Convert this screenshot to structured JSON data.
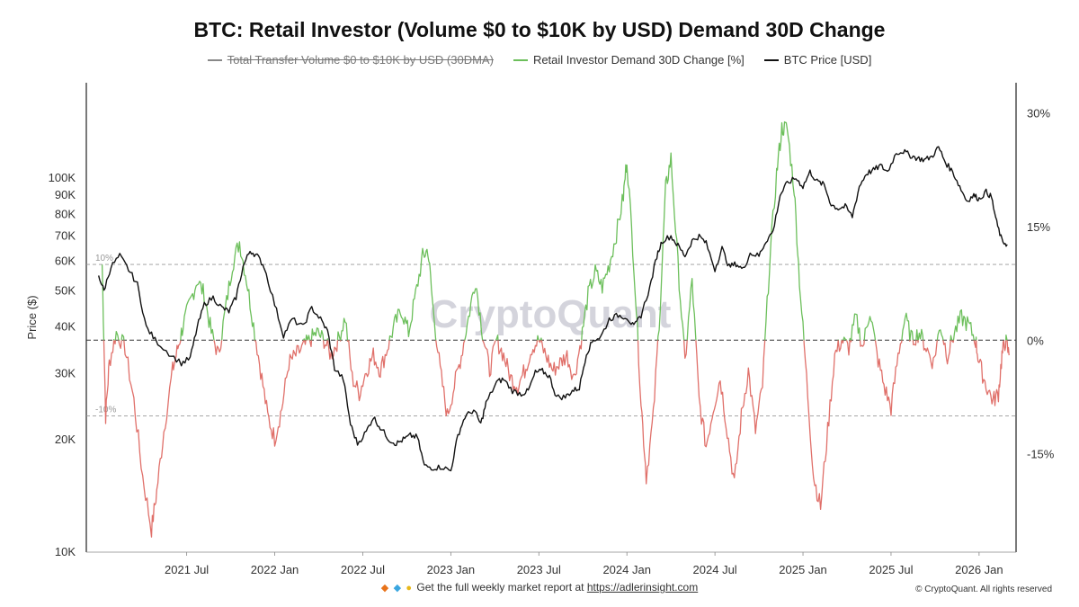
{
  "title": "BTC: Retail Investor (Volume $0 to $10K by USD) Demand 30D Change",
  "legend": [
    {
      "label": "Total Transfer Volume $0 to $10K by USD (30DMA)",
      "color": "#888888",
      "hidden": true
    },
    {
      "label": "Retail Investor Demand 30D Change [%]",
      "color": "#6cbf5b",
      "hidden": false
    },
    {
      "label": "BTC Price [USD]",
      "color": "#111111",
      "hidden": false
    }
  ],
  "footer": {
    "icons": [
      "diamond-icon",
      "gem-icon",
      "scream-icon"
    ],
    "text": "Get the full weekly market report at ",
    "link_text": "https://adlerinsight.com",
    "copyright": "© CryptoQuant. All rights reserved"
  },
  "watermark": "CryptoQuant",
  "colors": {
    "positive": "#6cbf5b",
    "negative": "#e0706a",
    "price": "#111111",
    "grid": "#888888"
  },
  "chart_data": {
    "type": "line",
    "title": "BTC: Retail Investor (Volume $0 to $10K by USD) Demand 30D Change",
    "x_ticks": [
      {
        "label": "2021 Jul",
        "t": 2021.5
      },
      {
        "label": "2022 Jan",
        "t": 2022.0
      },
      {
        "label": "2022 Jul",
        "t": 2022.5
      },
      {
        "label": "2023 Jan",
        "t": 2023.0
      },
      {
        "label": "2023 Jul",
        "t": 2023.5
      },
      {
        "label": "2024 Jan",
        "t": 2024.0
      },
      {
        "label": "2024 Jul",
        "t": 2024.5
      },
      {
        "label": "2025 Jan",
        "t": 2025.0
      },
      {
        "label": "2025 Jul",
        "t": 2025.5
      },
      {
        "label": "2026 Jan",
        "t": 2026.0
      }
    ],
    "x_range": [
      2020.93,
      2026.21
    ],
    "left_axis": {
      "label": "Price ($)",
      "scale": "log",
      "range": [
        10000,
        180000
      ],
      "ticks": [
        {
          "label": "10K",
          "v": 10000
        },
        {
          "label": "20K",
          "v": 20000
        },
        {
          "label": "30K",
          "v": 30000
        },
        {
          "label": "40K",
          "v": 40000
        },
        {
          "label": "50K",
          "v": 50000
        },
        {
          "label": "60K",
          "v": 60000
        },
        {
          "label": "70K",
          "v": 70000
        },
        {
          "label": "80K",
          "v": 80000
        },
        {
          "label": "90K",
          "v": 90000
        },
        {
          "label": "100K",
          "v": 100000
        }
      ]
    },
    "right_axis": {
      "range": [
        -28,
        34
      ],
      "ticks": [
        {
          "label": "30%",
          "v": 30
        },
        {
          "label": "15%",
          "v": 15
        },
        {
          "label": "0%",
          "v": 0
        },
        {
          "label": "-15%",
          "v": -15
        }
      ]
    },
    "ref_lines": [
      {
        "label": "10%",
        "v": 10,
        "dash": "4,3"
      },
      {
        "label": "-10%",
        "v": -10,
        "dash": "4,3"
      },
      {
        "label": "",
        "v": 0,
        "dash": "5,3"
      }
    ],
    "series": [
      {
        "name": "BTC Price [USD]",
        "axis": "left",
        "points": [
          [
            2021.0,
            55000
          ],
          [
            2021.03,
            50000
          ],
          [
            2021.07,
            58000
          ],
          [
            2021.12,
            62000
          ],
          [
            2021.17,
            57000
          ],
          [
            2021.22,
            52000
          ],
          [
            2021.27,
            40000
          ],
          [
            2021.32,
            37000
          ],
          [
            2021.4,
            34000
          ],
          [
            2021.47,
            32000
          ],
          [
            2021.52,
            33000
          ],
          [
            2021.56,
            40000
          ],
          [
            2021.6,
            46000
          ],
          [
            2021.65,
            48000
          ],
          [
            2021.7,
            45000
          ],
          [
            2021.74,
            44000
          ],
          [
            2021.78,
            48000
          ],
          [
            2021.82,
            58000
          ],
          [
            2021.86,
            64000
          ],
          [
            2021.9,
            62000
          ],
          [
            2021.94,
            58000
          ],
          [
            2022.0,
            46000
          ],
          [
            2022.05,
            38000
          ],
          [
            2022.1,
            42000
          ],
          [
            2022.16,
            40000
          ],
          [
            2022.21,
            45000
          ],
          [
            2022.26,
            42000
          ],
          [
            2022.3,
            39000
          ],
          [
            2022.34,
            31000
          ],
          [
            2022.39,
            29000
          ],
          [
            2022.43,
            22000
          ],
          [
            2022.47,
            19500
          ],
          [
            2022.52,
            21000
          ],
          [
            2022.56,
            23000
          ],
          [
            2022.6,
            21500
          ],
          [
            2022.65,
            20000
          ],
          [
            2022.69,
            19500
          ],
          [
            2022.73,
            20000
          ],
          [
            2022.77,
            20500
          ],
          [
            2022.81,
            20300
          ],
          [
            2022.85,
            17000
          ],
          [
            2022.9,
            16800
          ],
          [
            2022.95,
            16900
          ],
          [
            2023.0,
            16500
          ],
          [
            2023.04,
            20500
          ],
          [
            2023.08,
            23000
          ],
          [
            2023.13,
            24000
          ],
          [
            2023.17,
            22000
          ],
          [
            2023.2,
            25000
          ],
          [
            2023.26,
            28500
          ],
          [
            2023.3,
            29000
          ],
          [
            2023.35,
            27000
          ],
          [
            2023.4,
            26500
          ],
          [
            2023.44,
            27000
          ],
          [
            2023.48,
            30200
          ],
          [
            2023.52,
            30500
          ],
          [
            2023.56,
            29500
          ],
          [
            2023.6,
            26000
          ],
          [
            2023.65,
            26000
          ],
          [
            2023.69,
            27000
          ],
          [
            2023.73,
            27500
          ],
          [
            2023.77,
            34000
          ],
          [
            2023.81,
            37000
          ],
          [
            2023.85,
            37500
          ],
          [
            2023.9,
            42000
          ],
          [
            2023.95,
            43000
          ],
          [
            2024.0,
            42500
          ],
          [
            2024.04,
            40000
          ],
          [
            2024.08,
            43000
          ],
          [
            2024.13,
            51000
          ],
          [
            2024.17,
            62000
          ],
          [
            2024.2,
            68000
          ],
          [
            2024.25,
            70000
          ],
          [
            2024.29,
            66000
          ],
          [
            2024.33,
            62000
          ],
          [
            2024.37,
            68000
          ],
          [
            2024.41,
            70000
          ],
          [
            2024.45,
            67000
          ],
          [
            2024.5,
            57000
          ],
          [
            2024.54,
            65000
          ],
          [
            2024.58,
            58000
          ],
          [
            2024.62,
            59000
          ],
          [
            2024.66,
            57000
          ],
          [
            2024.7,
            63000
          ],
          [
            2024.75,
            62000
          ],
          [
            2024.79,
            68000
          ],
          [
            2024.83,
            72000
          ],
          [
            2024.87,
            90000
          ],
          [
            2024.91,
            97000
          ],
          [
            2024.96,
            100000
          ],
          [
            2025.0,
            95000
          ],
          [
            2025.04,
            104000
          ],
          [
            2025.08,
            98000
          ],
          [
            2025.12,
            96000
          ],
          [
            2025.16,
            85000
          ],
          [
            2025.2,
            83000
          ],
          [
            2025.24,
            84000
          ],
          [
            2025.28,
            79000
          ],
          [
            2025.32,
            95000
          ],
          [
            2025.36,
            103000
          ],
          [
            2025.4,
            105000
          ],
          [
            2025.44,
            108000
          ],
          [
            2025.48,
            104000
          ],
          [
            2025.53,
            117000
          ],
          [
            2025.57,
            118000
          ],
          [
            2025.61,
            115000
          ],
          [
            2025.65,
            113000
          ],
          [
            2025.69,
            112000
          ],
          [
            2025.73,
            114000
          ],
          [
            2025.77,
            121000
          ],
          [
            2025.81,
            110000
          ],
          [
            2025.85,
            104000
          ],
          [
            2025.89,
            95000
          ],
          [
            2025.93,
            87000
          ],
          [
            2025.97,
            90000
          ],
          [
            2026.0,
            88000
          ],
          [
            2026.04,
            92000
          ],
          [
            2026.07,
            89000
          ],
          [
            2026.1,
            76000
          ],
          [
            2026.13,
            68000
          ],
          [
            2026.16,
            66500
          ]
        ]
      },
      {
        "name": "Retail Investor Demand 30D Change [%]",
        "axis": "right",
        "points": [
          [
            2021.02,
            10
          ],
          [
            2021.04,
            -10
          ],
          [
            2021.06,
            -3
          ],
          [
            2021.1,
            1
          ],
          [
            2021.15,
            -1
          ],
          [
            2021.2,
            -8
          ],
          [
            2021.25,
            -18
          ],
          [
            2021.3,
            -25
          ],
          [
            2021.33,
            -20
          ],
          [
            2021.37,
            -12
          ],
          [
            2021.42,
            -4
          ],
          [
            2021.45,
            -1
          ],
          [
            2021.48,
            2
          ],
          [
            2021.52,
            5
          ],
          [
            2021.56,
            8
          ],
          [
            2021.6,
            6
          ],
          [
            2021.64,
            1
          ],
          [
            2021.68,
            -2
          ],
          [
            2021.72,
            4
          ],
          [
            2021.76,
            10
          ],
          [
            2021.8,
            13
          ],
          [
            2021.84,
            8
          ],
          [
            2021.88,
            2
          ],
          [
            2021.92,
            -4
          ],
          [
            2021.96,
            -10
          ],
          [
            2022.0,
            -13
          ],
          [
            2022.04,
            -9
          ],
          [
            2022.08,
            -3
          ],
          [
            2022.12,
            -2
          ],
          [
            2022.16,
            -1
          ],
          [
            2022.2,
            0
          ],
          [
            2022.24,
            1
          ],
          [
            2022.28,
            0
          ],
          [
            2022.32,
            -2
          ],
          [
            2022.36,
            0
          ],
          [
            2022.4,
            3
          ],
          [
            2022.44,
            -5
          ],
          [
            2022.48,
            -7
          ],
          [
            2022.52,
            -4
          ],
          [
            2022.56,
            -2
          ],
          [
            2022.6,
            -4
          ],
          [
            2022.64,
            -1
          ],
          [
            2022.68,
            2
          ],
          [
            2022.72,
            4
          ],
          [
            2022.76,
            1
          ],
          [
            2022.8,
            6
          ],
          [
            2022.84,
            11
          ],
          [
            2022.87,
            12
          ],
          [
            2022.9,
            4
          ],
          [
            2022.94,
            -4
          ],
          [
            2022.98,
            -10
          ],
          [
            2023.02,
            -6
          ],
          [
            2023.06,
            -2
          ],
          [
            2023.1,
            3
          ],
          [
            2023.14,
            8
          ],
          [
            2023.18,
            1
          ],
          [
            2023.22,
            -4
          ],
          [
            2023.26,
            0
          ],
          [
            2023.3,
            -2
          ],
          [
            2023.34,
            -5
          ],
          [
            2023.38,
            -6
          ],
          [
            2023.42,
            -4
          ],
          [
            2023.46,
            -1
          ],
          [
            2023.5,
            0
          ],
          [
            2023.54,
            -2
          ],
          [
            2023.58,
            -4
          ],
          [
            2023.62,
            -3
          ],
          [
            2023.66,
            -2
          ],
          [
            2023.7,
            -5
          ],
          [
            2023.74,
            0
          ],
          [
            2023.78,
            6
          ],
          [
            2023.82,
            9
          ],
          [
            2023.86,
            7
          ],
          [
            2023.9,
            10
          ],
          [
            2023.94,
            14
          ],
          [
            2023.98,
            19
          ],
          [
            2024.0,
            24
          ],
          [
            2024.04,
            10
          ],
          [
            2024.08,
            -8
          ],
          [
            2024.11,
            -18
          ],
          [
            2024.15,
            -10
          ],
          [
            2024.19,
            5
          ],
          [
            2024.22,
            20
          ],
          [
            2024.25,
            24
          ],
          [
            2024.29,
            10
          ],
          [
            2024.33,
            -3
          ],
          [
            2024.37,
            8
          ],
          [
            2024.41,
            -8
          ],
          [
            2024.45,
            -14
          ],
          [
            2024.49,
            -9
          ],
          [
            2024.53,
            -5
          ],
          [
            2024.57,
            -12
          ],
          [
            2024.61,
            -19
          ],
          [
            2024.65,
            -10
          ],
          [
            2024.69,
            -4
          ],
          [
            2024.73,
            -12
          ],
          [
            2024.77,
            -6
          ],
          [
            2024.81,
            10
          ],
          [
            2024.85,
            22
          ],
          [
            2024.88,
            28
          ],
          [
            2024.91,
            28
          ],
          [
            2024.95,
            20
          ],
          [
            2024.98,
            8
          ],
          [
            2025.02,
            -5
          ],
          [
            2025.06,
            -18
          ],
          [
            2025.1,
            -22
          ],
          [
            2025.14,
            -12
          ],
          [
            2025.18,
            -2
          ],
          [
            2025.22,
            0
          ],
          [
            2025.26,
            -1
          ],
          [
            2025.3,
            3
          ],
          [
            2025.34,
            -1
          ],
          [
            2025.38,
            4
          ],
          [
            2025.42,
            -2
          ],
          [
            2025.46,
            -6
          ],
          [
            2025.5,
            -9
          ],
          [
            2025.54,
            -2
          ],
          [
            2025.58,
            3
          ],
          [
            2025.62,
            0
          ],
          [
            2025.66,
            1
          ],
          [
            2025.7,
            -1
          ],
          [
            2025.74,
            -3
          ],
          [
            2025.78,
            2
          ],
          [
            2025.82,
            -2
          ],
          [
            2025.86,
            1
          ],
          [
            2025.9,
            3
          ],
          [
            2025.94,
            2
          ],
          [
            2025.98,
            0
          ],
          [
            2026.0,
            -3
          ],
          [
            2026.04,
            -6
          ],
          [
            2026.08,
            -8
          ],
          [
            2026.11,
            -7
          ],
          [
            2026.13,
            -2
          ],
          [
            2026.15,
            0
          ],
          [
            2026.17,
            -2
          ]
        ]
      }
    ]
  }
}
